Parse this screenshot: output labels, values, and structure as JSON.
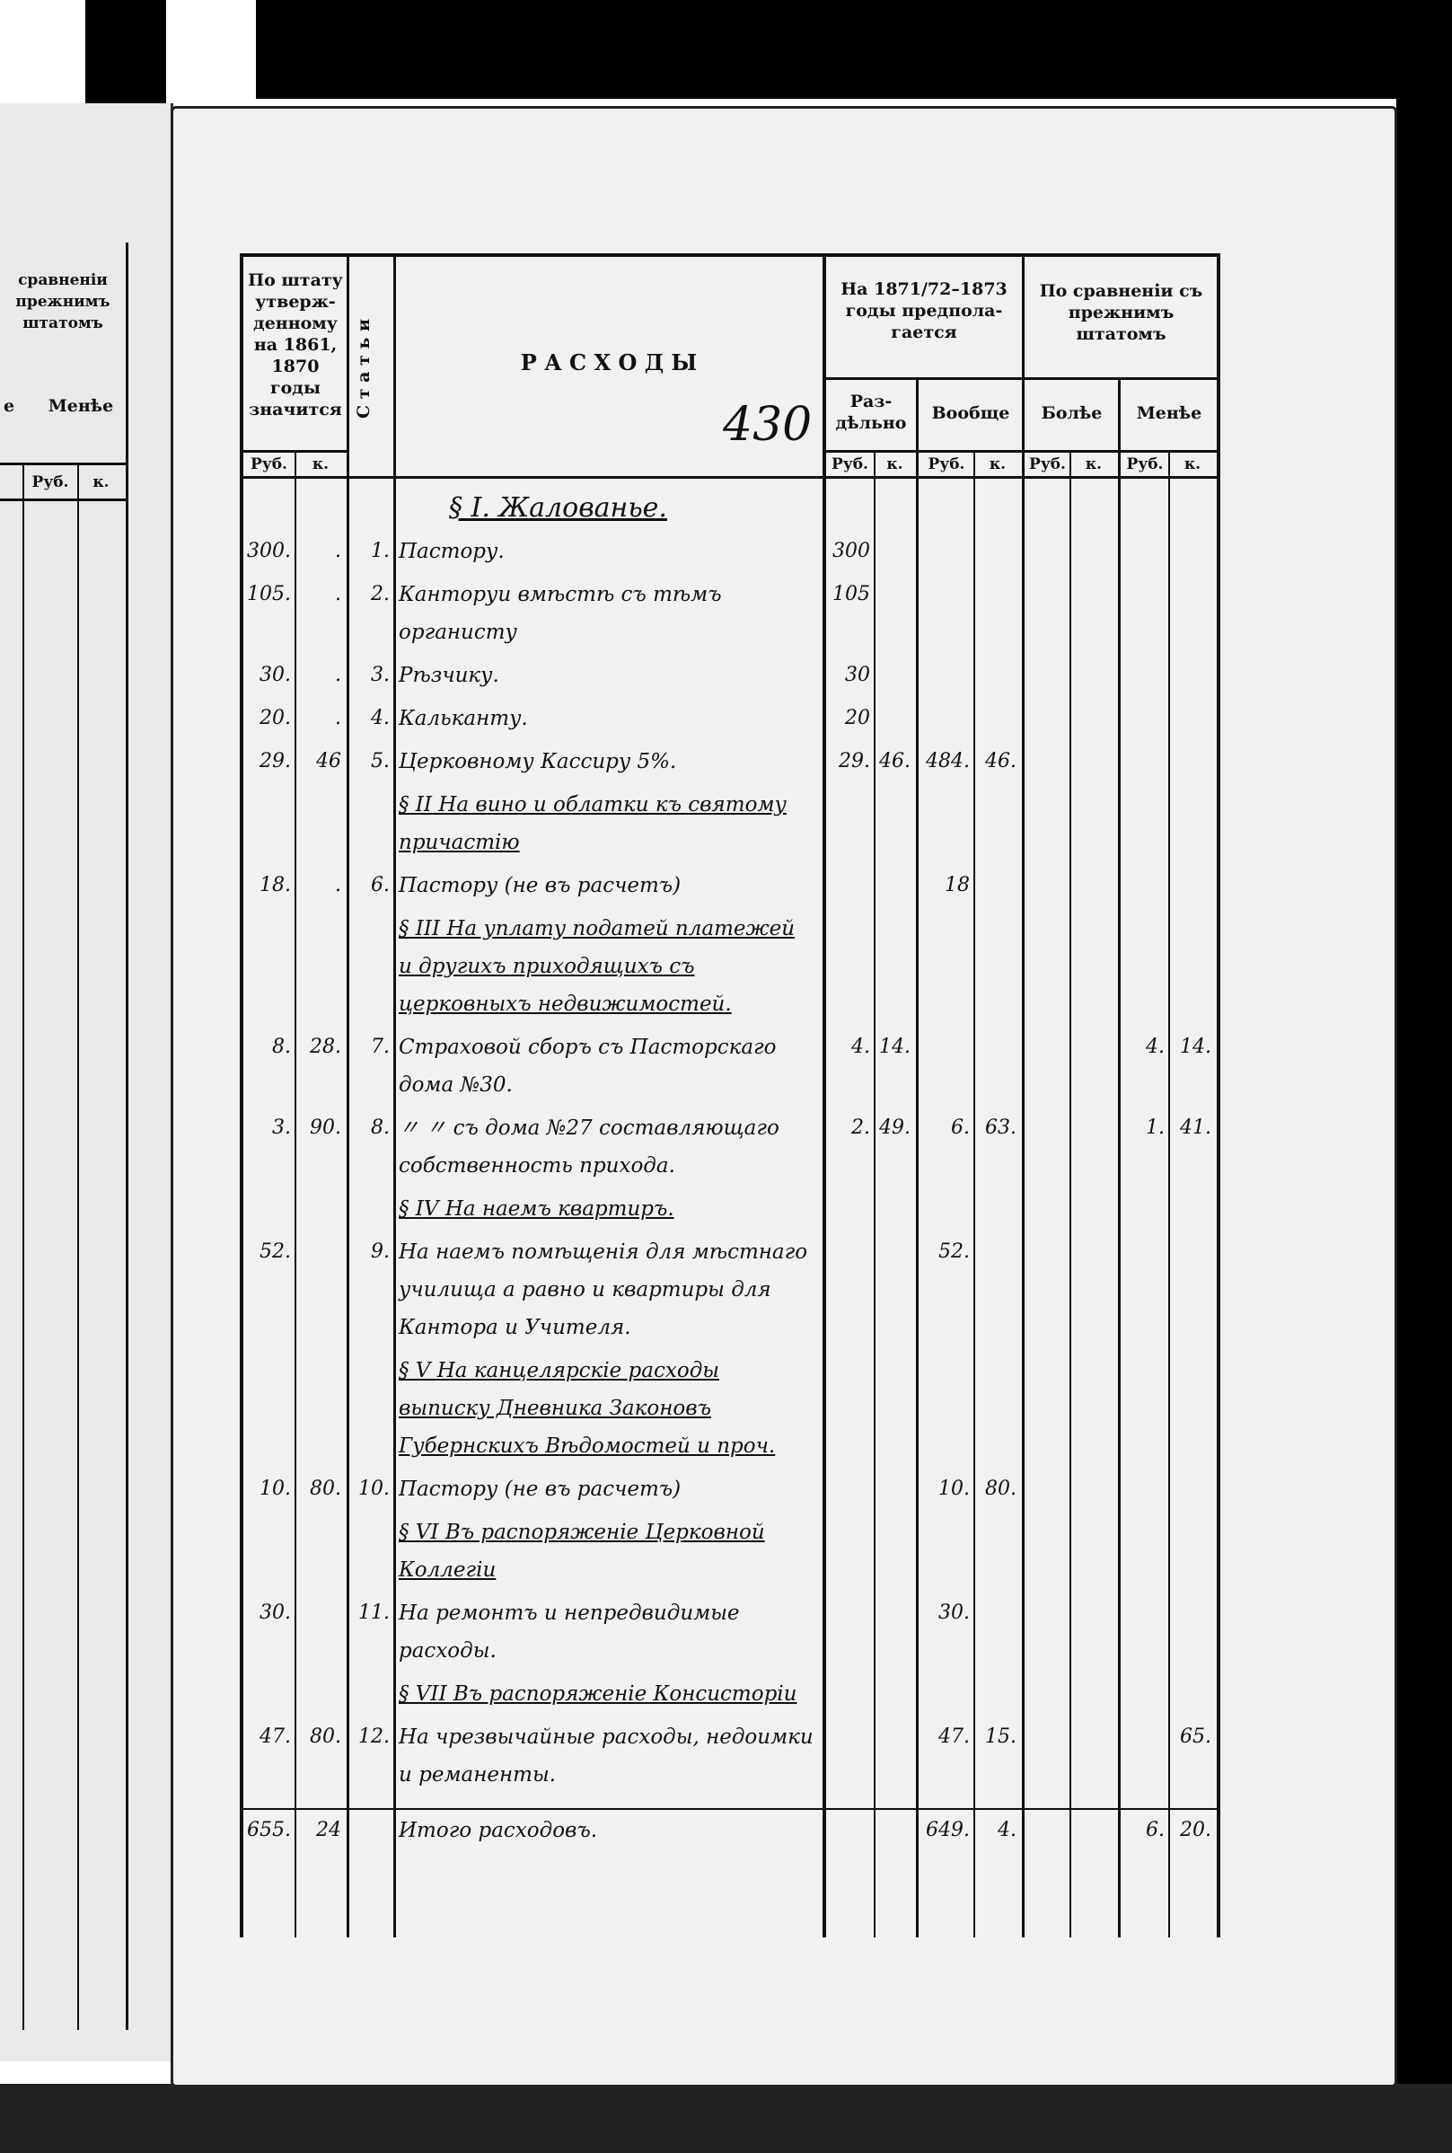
{
  "page_number": "430",
  "header": {
    "col_staff": "По штату утверж-денному на 1861, 1870 годы значится",
    "col_articles": "С т а т ь и",
    "col_title": "Р А С Х О Д Ы",
    "col_planned": "На 1871/72–1873 годы предпола-гается",
    "col_compare": "По сравненiи съ прежнимъ штатомъ",
    "sub_separately": "Раз-дѣльно",
    "sub_total": "Вообще",
    "sub_more": "Болѣе",
    "sub_less": "Менѣе",
    "rub": "Руб.",
    "kop": "к."
  },
  "left_page_header": {
    "compare": "сравненiи прежнимъ штатомъ",
    "less": "Менѣе",
    "more": "е",
    "rub": "Руб.",
    "kop": "к."
  },
  "rows": [
    {
      "text": "§ I. Жалованье.",
      "section": true
    },
    {
      "staff_r": "300.",
      "staff_k": ".",
      "art": "1.",
      "text": "Пастору.",
      "sep_r": "300",
      "sep_k": ""
    },
    {
      "staff_r": "105.",
      "staff_k": ".",
      "art": "2.",
      "text": "Канторуи вмѣстѣ съ тѣмъ органисту",
      "sep_r": "105",
      "sep_k": ""
    },
    {
      "staff_r": "30.",
      "staff_k": ".",
      "art": "3.",
      "text": "Рѣзчику.",
      "sep_r": "30",
      "sep_k": ""
    },
    {
      "staff_r": "20.",
      "staff_k": ".",
      "art": "4.",
      "text": "Кальканту.",
      "sep_r": "20",
      "sep_k": ""
    },
    {
      "staff_r": "29.",
      "staff_k": "46",
      "art": "5.",
      "text": "Церковному Кассиру 5%.",
      "sep_r": "29.",
      "sep_k": "46.",
      "tot_r": "484.",
      "tot_k": "46."
    },
    {
      "text": "§ II На вино и облатки къ святому причастiю",
      "section": true
    },
    {
      "staff_r": "18.",
      "staff_k": ".",
      "art": "6.",
      "text": "Пастору (не въ расчетъ)",
      "tot_r": "18"
    },
    {
      "text": "§ III На уплату податей платежей и другихъ приходящихъ съ церковныхъ недвижимостей.",
      "section": true
    },
    {
      "staff_r": "8.",
      "staff_k": "28.",
      "art": "7.",
      "text": "Страховой сборъ съ Пасторскаго дома №30.",
      "sep_r": "4.",
      "sep_k": "14.",
      "less_r": "4.",
      "less_k": "14."
    },
    {
      "staff_r": "3.",
      "staff_k": "90.",
      "art": "8.",
      "text": "〃 〃 съ дома №27 составляющаго собственность прихода.",
      "sep_r": "2.",
      "sep_k": "49.",
      "tot_r": "6.",
      "tot_k": "63.",
      "less_r": "1.",
      "less_k": "41."
    },
    {
      "text": "§ IV На наемъ квартиръ.",
      "section": true
    },
    {
      "staff_r": "52.",
      "staff_k": "",
      "art": "9.",
      "text": "На наемъ помѣщенiя для мѣстнаго училища а равно и квартиры для Кантора и Учителя.",
      "tot_r": "52."
    },
    {
      "text": "§ V На канцелярскiе расходы выписку Дневника Законовъ Губернскихъ Вѣдомостей и проч.",
      "section": true
    },
    {
      "staff_r": "10.",
      "staff_k": "80.",
      "art": "10.",
      "text": "Пастору (не въ расчетъ)",
      "tot_r": "10.",
      "tot_k": "80."
    },
    {
      "text": "§ VI Въ распоряженiе Церковной Коллегiи",
      "section": true
    },
    {
      "staff_r": "30.",
      "staff_k": "",
      "art": "11.",
      "text": "На ремонтъ и непредвидимые расходы.",
      "tot_r": "30."
    },
    {
      "text": "§ VII Въ распоряженiе Консисторiи",
      "section": true
    },
    {
      "staff_r": "47.",
      "staff_k": "80.",
      "art": "12.",
      "text": "На чрезвычайные расходы, недоимки и реманенты.",
      "tot_r": "47.",
      "tot_k": "15.",
      "less_k": "65."
    },
    {
      "staff_r": "655.",
      "staff_k": "24",
      "art": "",
      "text": "Итого расходовъ.",
      "tot_r": "649.",
      "tot_k": "4.",
      "less_r": "6.",
      "less_k": "20.",
      "total": true
    }
  ]
}
